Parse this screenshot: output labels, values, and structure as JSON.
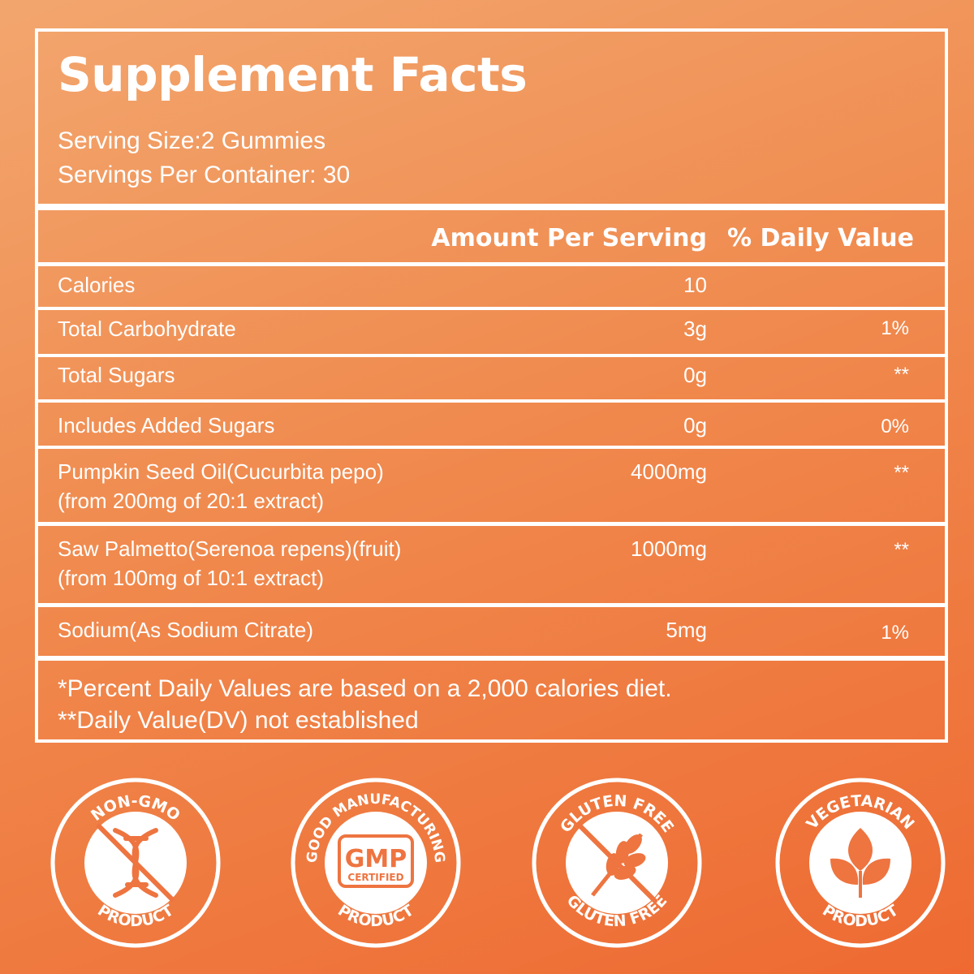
{
  "title": "Supplement Facts",
  "serving_size": "Serving Size:2 Gummies",
  "servings_per_container": "Servings Per Container: 30",
  "headers": {
    "amount": "Amount Per Serving",
    "daily_value": "% Daily Value"
  },
  "rows": [
    {
      "name": "Calories",
      "name2": "",
      "amount": "10",
      "dv": ""
    },
    {
      "name": "Total Carbohydrate",
      "name2": "",
      "amount": "3g",
      "dv": "1%"
    },
    {
      "name": "Total Sugars",
      "name2": "",
      "amount": "0g",
      "dv": "**"
    },
    {
      "name": "Includes Added Sugars",
      "name2": "",
      "amount": "0g",
      "dv": "0%"
    },
    {
      "name": "Pumpkin Seed Oil(Cucurbita pepo)",
      "name2": "(from 200mg of 20:1 extract)",
      "amount": "4000mg",
      "dv": "**"
    },
    {
      "name": "Saw Palmetto(Serenoa repens)(fruit)",
      "name2": "(from 100mg of 10:1 extract)",
      "amount": "1000mg",
      "dv": "**"
    },
    {
      "name": "Sodium(As Sodium Citrate)",
      "name2": "",
      "amount": "5mg",
      "dv": "1%"
    }
  ],
  "footnotes": {
    "line1": "*Percent Daily Values are based on a 2,000 calories diet.",
    "line2": "**Daily Value(DV) not established"
  },
  "badges": [
    {
      "top": "NON-GMO",
      "bottom": "PRODUCT",
      "icon": "dna-crossed-icon"
    },
    {
      "top": "GOOD MANUFACTURING",
      "bottom": "PRODUCT",
      "center1": "GMP",
      "center2": "CERTIFIED",
      "icon": "gmp-label-icon"
    },
    {
      "top": "GLUTEN FREE",
      "bottom": "GLUTEN FREE",
      "icon": "wheat-crossed-icon"
    },
    {
      "top": "VEGETARIAN",
      "bottom": "PRODUCT",
      "icon": "leaves-icon"
    }
  ],
  "colors": {
    "background_light": "#f2a66e",
    "background_dark": "#ee6a32",
    "badge_icon": "#ee7440",
    "text": "#ffffff"
  }
}
